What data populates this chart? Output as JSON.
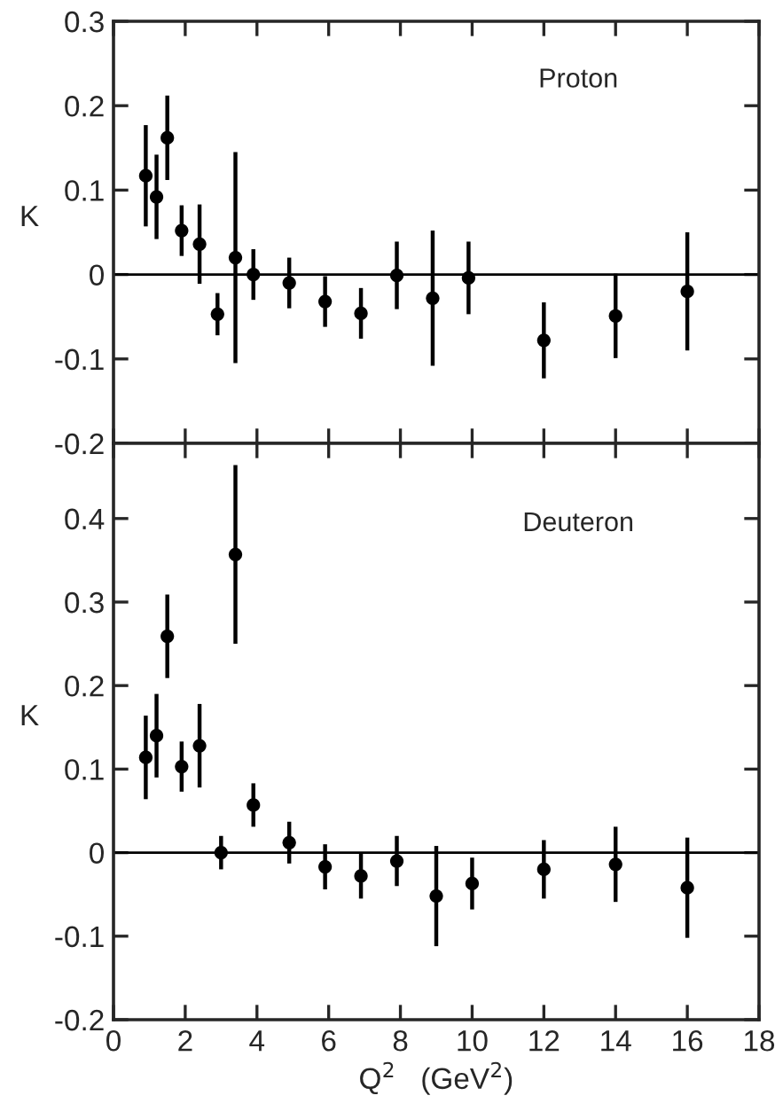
{
  "chart_data": [
    {
      "type": "scatter",
      "ylabel": "K",
      "annotations": [
        "Proton"
      ],
      "marker": "circle",
      "grid": false,
      "tick_labels": "y",
      "x": [
        0.9,
        1.2,
        1.5,
        1.9,
        2.4,
        2.9,
        3.4,
        3.9,
        4.9,
        5.9,
        6.9,
        7.9,
        8.9,
        9.9,
        12,
        14,
        16
      ],
      "series": [
        {
          "color": "#000000",
          "values": [
            0.117,
            0.092,
            0.162,
            0.052,
            0.036,
            -0.047,
            0.02,
            0.0,
            -0.01,
            -0.032,
            -0.046,
            -0.001,
            -0.028,
            -0.004,
            -0.078,
            -0.049,
            -0.02
          ],
          "errors": [
            0.06,
            0.05,
            0.05,
            0.03,
            0.047,
            0.025,
            0.125,
            0.03,
            0.03,
            0.03,
            0.03,
            0.04,
            0.08,
            0.043,
            0.045,
            0.05,
            0.07
          ]
        }
      ],
      "xlim": [
        0,
        18
      ],
      "xticks": [
        0,
        2,
        4,
        6,
        8,
        10,
        12,
        14,
        16,
        18
      ],
      "ylim": [
        -0.2,
        0.3
      ],
      "yticks": [
        0.3,
        0.2,
        0.1,
        0,
        -0.1,
        -0.2
      ],
      "ref_lines": [
        {
          "axis": "y",
          "value": 0
        }
      ]
    },
    {
      "type": "scatter",
      "ylabel": "K",
      "xlabel": "Q$^{2}$   (GeV$^{2}$)",
      "annotations": [
        "Deuteron"
      ],
      "marker": "circle",
      "grid": false,
      "x": [
        0.9,
        1.2,
        1.5,
        1.9,
        2.4,
        3.0,
        3.4,
        3.9,
        4.9,
        5.9,
        6.9,
        7.9,
        9.0,
        10.0,
        12,
        14,
        16
      ],
      "series": [
        {
          "color": "#000000",
          "values": [
            0.114,
            0.14,
            0.259,
            0.103,
            0.128,
            0.0,
            0.357,
            0.057,
            0.012,
            -0.017,
            -0.028,
            -0.01,
            -0.052,
            -0.037,
            -0.02,
            -0.014,
            -0.042
          ],
          "errors": [
            0.05,
            0.05,
            0.05,
            0.03,
            0.05,
            0.02,
            0.107,
            0.026,
            0.025,
            0.027,
            0.027,
            0.03,
            0.06,
            0.031,
            0.035,
            0.045,
            0.06
          ]
        }
      ],
      "xlim": [
        0,
        18
      ],
      "xticks": [
        0,
        2,
        4,
        6,
        8,
        10,
        12,
        14,
        16,
        18
      ],
      "ylim": [
        -0.2,
        0.49
      ],
      "yticks": [
        0.4,
        0.3,
        0.2,
        0.1,
        0,
        -0.1,
        -0.2
      ],
      "ref_lines": [
        {
          "axis": "y",
          "value": 0
        }
      ]
    }
  ]
}
